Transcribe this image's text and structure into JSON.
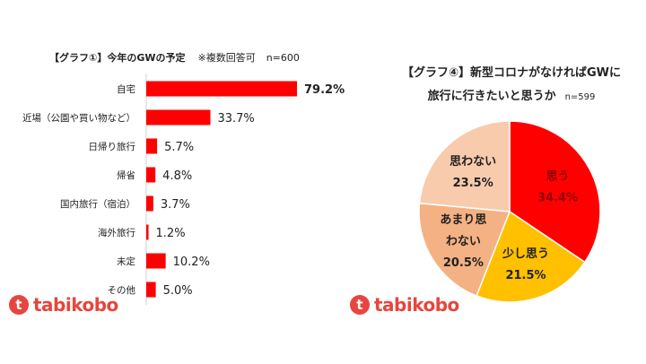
{
  "logo_text": "tabikobo",
  "chart_data": [
    {
      "type": "bar",
      "orientation": "horizontal",
      "title": "【グラフ①】今年のGWの予定",
      "note": "※複数回答可",
      "sample": "n=600",
      "categories": [
        "自宅",
        "近場（公園や買い物など）",
        "日帰り旅行",
        "帰省",
        "国内旅行（宿泊）",
        "海外旅行",
        "未定",
        "その他"
      ],
      "values": [
        79.2,
        33.7,
        5.7,
        4.8,
        3.7,
        1.2,
        10.2,
        5.0
      ],
      "labels": [
        "79.2%",
        "33.7%",
        "5.7%",
        "4.8%",
        "3.7%",
        "1.2%",
        "10.2%",
        "5.0%"
      ],
      "unit": "%",
      "color": "#ff0000",
      "xlim": [
        0,
        80
      ]
    },
    {
      "type": "pie",
      "title_line1": "【グラフ④】新型コロナがなければGWに",
      "title_line2": "旅行に行きたいと思うか",
      "sample": "n=599",
      "slices": [
        {
          "label": "思う",
          "value": 34.4,
          "value_label": "34.4%",
          "color": "#ff0000"
        },
        {
          "label": "少し思う",
          "value": 21.5,
          "value_label": "21.5%",
          "color": "#ffc000"
        },
        {
          "label": "あまり思わない",
          "label_lines": [
            "あまり思",
            "わない"
          ],
          "value": 20.5,
          "value_label": "20.5%",
          "color": "#f4b183"
        },
        {
          "label": "思わない",
          "value": 23.5,
          "value_label": "23.5%",
          "color": "#f8cbad"
        }
      ],
      "start": "top",
      "direction": "clockwise"
    }
  ]
}
